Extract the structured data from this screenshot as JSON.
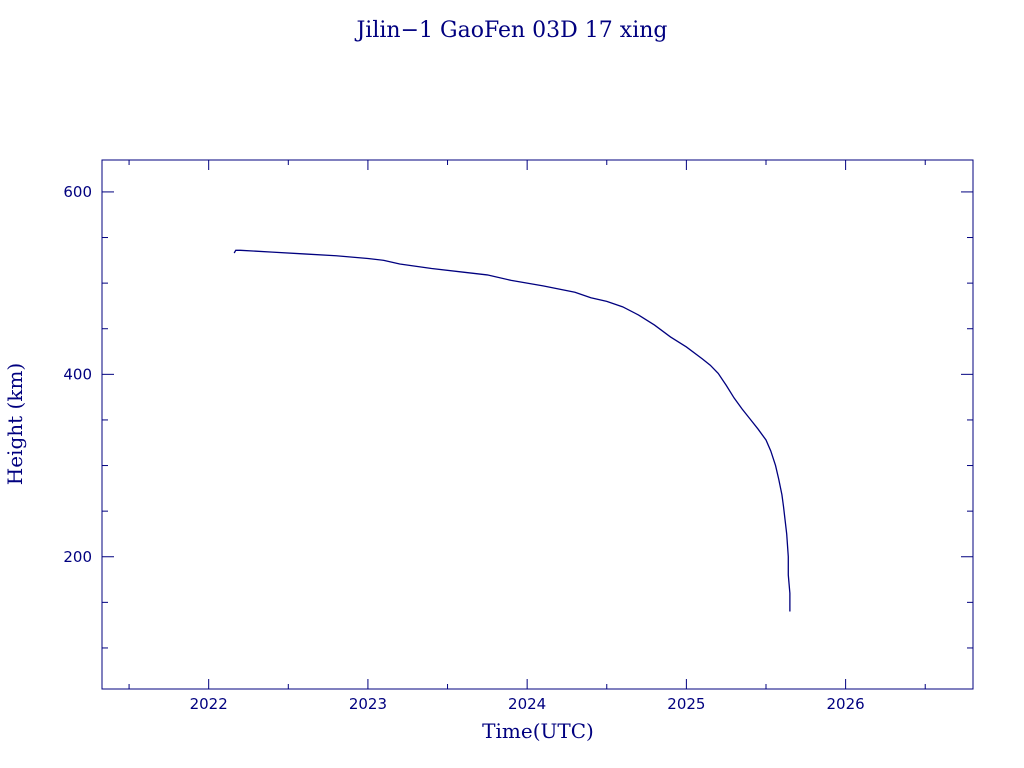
{
  "chart_data": {
    "type": "line",
    "title": "Jilin−1 GaoFen 03D 17 xing",
    "xlabel": "Time(UTC)",
    "ylabel": "Height (km)",
    "xlim": [
      2021.33,
      2026.8
    ],
    "ylim": [
      55,
      635
    ],
    "x_ticks": [
      2022,
      2023,
      2024,
      2025,
      2026
    ],
    "x_tick_labels": [
      "2022",
      "2023",
      "2024",
      "2025",
      "2026"
    ],
    "x_minor_step": 0.5,
    "y_ticks": [
      200,
      400,
      600
    ],
    "y_tick_labels": [
      "200",
      "400",
      "600"
    ],
    "y_minor_step": 50,
    "grid": false,
    "line_color": "#00007f",
    "series": [
      {
        "x": [
          2022.16,
          2022.17,
          2022.2,
          2022.4,
          2022.6,
          2022.8,
          2023.0,
          2023.1,
          2023.2,
          2023.4,
          2023.6,
          2023.75,
          2023.9,
          2024.1,
          2024.3,
          2024.4,
          2024.5,
          2024.6,
          2024.7,
          2024.8,
          2024.9,
          2025.0,
          2025.1,
          2025.15,
          2025.2,
          2025.25,
          2025.3,
          2025.35,
          2025.4,
          2025.45,
          2025.5,
          2025.53,
          2025.56,
          2025.58,
          2025.6,
          2025.61,
          2025.62,
          2025.63,
          2025.64,
          2025.64,
          2025.65,
          2025.65
        ],
        "y": [
          533,
          536,
          536,
          534,
          532,
          530,
          527,
          525,
          521,
          516,
          512,
          509,
          503,
          497,
          490,
          484,
          480,
          474,
          465,
          454,
          441,
          430,
          417,
          410,
          401,
          388,
          374,
          362,
          351,
          340,
          328,
          316,
          300,
          285,
          268,
          255,
          240,
          225,
          200,
          180,
          160,
          140
        ]
      }
    ]
  }
}
